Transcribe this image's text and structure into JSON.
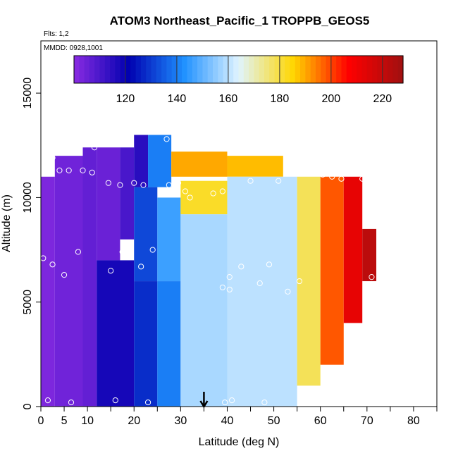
{
  "chart_data": {
    "type": "heatmap",
    "title": "ATOM3 Northeast_Pacific_1 TROPPB_GEOS5",
    "subtitle_flights": "Flts: 1,2",
    "subtitle_dates": "MMDD: 0928,1001",
    "xlabel": "Latitude (deg N)",
    "ylabel": "Altitude (m)",
    "xlim": [
      0,
      85
    ],
    "ylim": [
      0,
      17500
    ],
    "x_ticks": [
      "0",
      "5",
      "10",
      "20",
      "30",
      "40",
      "50",
      "60",
      "70",
      "80"
    ],
    "x_tick_values": [
      0,
      5,
      10,
      20,
      30,
      40,
      50,
      60,
      70,
      80
    ],
    "x_minor_ticks": [
      15,
      25,
      35,
      45,
      55,
      65,
      75,
      85
    ],
    "y_ticks": [
      "0",
      "5000",
      "10000",
      "15000"
    ],
    "y_tick_values": [
      0,
      5000,
      10000,
      15000
    ],
    "colorbar": {
      "min": 100,
      "max": 228,
      "ticks": [
        "120",
        "140",
        "160",
        "180",
        "200",
        "220"
      ],
      "tick_values": [
        120,
        140,
        160,
        180,
        200,
        220
      ],
      "colors": [
        "#8a2be2",
        "#0000b0",
        "#1e90ff",
        "#e0f4ff",
        "#ffd700",
        "#ff0000",
        "#a01010"
      ]
    },
    "arrow_latitude": 35,
    "grid": false,
    "legend": "colorbar-top",
    "field": [
      {
        "lat": [
          0.0,
          3.0
        ],
        "alt": [
          0,
          11000
        ],
        "value": 102
      },
      {
        "lat": [
          3.0,
          9.0
        ],
        "alt": [
          0,
          12000
        ],
        "value": 104
      },
      {
        "lat": [
          9.0,
          12.0
        ],
        "alt": [
          0,
          12400
        ],
        "value": 106
      },
      {
        "lat": [
          12.0,
          17.0
        ],
        "alt": [
          7000,
          12400
        ],
        "value": 105
      },
      {
        "lat": [
          17.0,
          20.0
        ],
        "alt": [
          8000,
          12400
        ],
        "value": 110
      },
      {
        "lat": [
          12.0,
          20.0
        ],
        "alt": [
          0,
          7000
        ],
        "value": 118
      },
      {
        "lat": [
          20.0,
          25.0
        ],
        "alt": [
          0,
          6000
        ],
        "value": 128
      },
      {
        "lat": [
          20.0,
          25.0
        ],
        "alt": [
          6000,
          10500
        ],
        "value": 132
      },
      {
        "lat": [
          20.0,
          23.0
        ],
        "alt": [
          10500,
          13000
        ],
        "value": 115
      },
      {
        "lat": [
          23.0,
          28.0
        ],
        "alt": [
          10500,
          13000
        ],
        "value": 140
      },
      {
        "lat": [
          25.0,
          30.0
        ],
        "alt": [
          0,
          6000
        ],
        "value": 140
      },
      {
        "lat": [
          25.0,
          30.0
        ],
        "alt": [
          6000,
          10000
        ],
        "value": 146
      },
      {
        "lat": [
          28.0,
          40.0
        ],
        "alt": [
          11000,
          12200
        ],
        "value": 190
      },
      {
        "lat": [
          40.0,
          52.0
        ],
        "alt": [
          11000,
          12000
        ],
        "value": 188
      },
      {
        "lat": [
          30.0,
          40.0
        ],
        "alt": [
          9200,
          10800
        ],
        "value": 182
      },
      {
        "lat": [
          30.0,
          40.0
        ],
        "alt": [
          0,
          9200
        ],
        "value": 158
      },
      {
        "lat": [
          40.0,
          55.0
        ],
        "alt": [
          0,
          11000
        ],
        "value": 160
      },
      {
        "lat": [
          55.0,
          60.0
        ],
        "alt": [
          1000,
          11000
        ],
        "value": 178
      },
      {
        "lat": [
          60.0,
          65.0
        ],
        "alt": [
          2000,
          11000
        ],
        "value": 198
      },
      {
        "lat": [
          65.0,
          69.0
        ],
        "alt": [
          4000,
          11000
        ],
        "value": 212
      },
      {
        "lat": [
          69.0,
          72.0
        ],
        "alt": [
          6000,
          8500
        ],
        "value": 222
      }
    ],
    "observation_points": [
      {
        "lat": 0.5,
        "alt": 7100
      },
      {
        "lat": 1.5,
        "alt": 300
      },
      {
        "lat": 2.5,
        "alt": 6800
      },
      {
        "lat": 2.5,
        "alt": 11900
      },
      {
        "lat": 4.0,
        "alt": 11300
      },
      {
        "lat": 5.0,
        "alt": 6300
      },
      {
        "lat": 6.0,
        "alt": 11300
      },
      {
        "lat": 6.5,
        "alt": 200
      },
      {
        "lat": 8.0,
        "alt": 7400
      },
      {
        "lat": 9.0,
        "alt": 11300
      },
      {
        "lat": 11.0,
        "alt": 11200
      },
      {
        "lat": 11.5,
        "alt": 12400
      },
      {
        "lat": 14.5,
        "alt": 10700
      },
      {
        "lat": 15.0,
        "alt": 6500
      },
      {
        "lat": 16.0,
        "alt": 300
      },
      {
        "lat": 17.0,
        "alt": 10600
      },
      {
        "lat": 17.5,
        "alt": 7400
      },
      {
        "lat": 19.0,
        "alt": 12600
      },
      {
        "lat": 20.0,
        "alt": 10700
      },
      {
        "lat": 21.5,
        "alt": 6700
      },
      {
        "lat": 22.0,
        "alt": 10600
      },
      {
        "lat": 23.0,
        "alt": 200
      },
      {
        "lat": 24.0,
        "alt": 7500
      },
      {
        "lat": 27.0,
        "alt": 12800
      },
      {
        "lat": 27.5,
        "alt": 10600
      },
      {
        "lat": 29.0,
        "alt": 12400
      },
      {
        "lat": 29.5,
        "alt": 10700
      },
      {
        "lat": 31.0,
        "alt": 10300
      },
      {
        "lat": 32.0,
        "alt": 10000
      },
      {
        "lat": 37.0,
        "alt": 10200
      },
      {
        "lat": 39.0,
        "alt": 10300
      },
      {
        "lat": 39.0,
        "alt": 5700
      },
      {
        "lat": 39.5,
        "alt": 200
      },
      {
        "lat": 40.5,
        "alt": 6200
      },
      {
        "lat": 40.5,
        "alt": 5600
      },
      {
        "lat": 41.0,
        "alt": 300
      },
      {
        "lat": 43.0,
        "alt": 6700
      },
      {
        "lat": 45.0,
        "alt": 10800
      },
      {
        "lat": 47.0,
        "alt": 5900
      },
      {
        "lat": 48.0,
        "alt": 200
      },
      {
        "lat": 49.0,
        "alt": 6800
      },
      {
        "lat": 51.0,
        "alt": 10800
      },
      {
        "lat": 53.0,
        "alt": 5500
      },
      {
        "lat": 55.5,
        "alt": 6000
      },
      {
        "lat": 58.0,
        "alt": 11200
      },
      {
        "lat": 60.5,
        "alt": 11100
      },
      {
        "lat": 62.5,
        "alt": 11000
      },
      {
        "lat": 64.5,
        "alt": 10900
      },
      {
        "lat": 69.0,
        "alt": 10900
      },
      {
        "lat": 71.0,
        "alt": 6200
      }
    ]
  }
}
